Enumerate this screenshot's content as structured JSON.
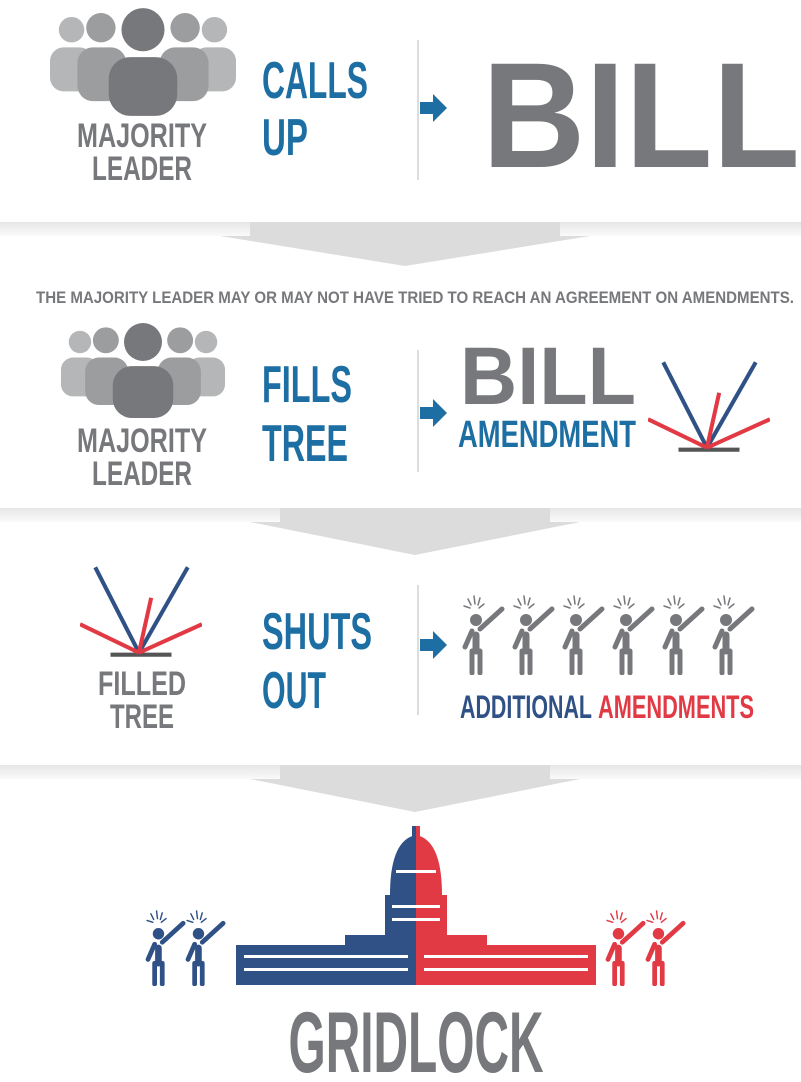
{
  "steps": [
    {
      "actor": [
        "MAJORITY",
        "LEADER"
      ],
      "action": [
        "CALLS",
        "UP"
      ],
      "object": [
        "BILL"
      ]
    },
    {
      "actor": [
        "MAJORITY",
        "LEADER"
      ],
      "action": [
        "FILLS",
        "TREE"
      ],
      "object": [
        "BILL",
        "AMENDMENT"
      ]
    },
    {
      "actor": [
        "FILLED",
        "TREE"
      ],
      "action": [
        "SHUTS",
        "OUT"
      ],
      "object": [
        "ADDITIONAL",
        "AMENDMENTS"
      ]
    }
  ],
  "note": "THE MAJORITY LEADER MAY OR MAY NOT HAVE TRIED TO REACH AN AGREEMENT ON AMENDMENTS.",
  "result": "GRIDLOCK"
}
